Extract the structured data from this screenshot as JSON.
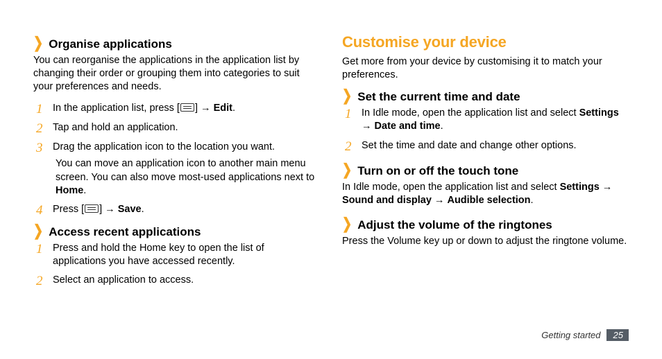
{
  "colors": {
    "accent": "#f5a623",
    "text": "#000000",
    "badge_bg": "#555d66"
  },
  "left": {
    "organise": {
      "heading": "Organise applications",
      "intro": "You can reorganise the applications in the application list by changing their order or grouping them into categories to suit your preferences and needs.",
      "steps": [
        {
          "num": "1",
          "html": "In the application list, press [<span class='menu-icon' data-name='menu-icon' data-interactable='false'></span>] → <span class='b'>Edit</span>."
        },
        {
          "num": "2",
          "html": "Tap and hold an application."
        },
        {
          "num": "3",
          "html": "Drag the application icon to the location you want."
        },
        {
          "sub": true,
          "html": "You can move an application icon to another main menu screen. You can also move most-used applications next to <span class='b'>Home</span>."
        },
        {
          "num": "4",
          "html": "Press [<span class='menu-icon' data-name='menu-icon' data-interactable='false'></span>] → <span class='b'>Save</span>."
        }
      ]
    },
    "recent": {
      "heading": "Access recent applications",
      "steps": [
        {
          "num": "1",
          "html": "Press and hold the Home key to open the list of applications you have accessed recently."
        },
        {
          "num": "2",
          "html": "Select an application to access."
        }
      ]
    }
  },
  "right": {
    "title": "Customise your device",
    "intro": "Get more from your device by customising it to match your preferences.",
    "time": {
      "heading": "Set the current time and date",
      "steps": [
        {
          "num": "1",
          "html": "In Idle mode, open the application list and select <span class='b'>Settings</span> → <span class='b'>Date and time</span>."
        },
        {
          "num": "2",
          "html": "Set the time and date and change other options."
        }
      ]
    },
    "tone": {
      "heading": "Turn on or off the touch tone",
      "body_html": "In Idle mode, open the application list and select <span class='b'>Settings</span> → <span class='b'>Sound and display</span> → <span class='b'>Audible selection</span>."
    },
    "volume": {
      "heading": "Adjust the volume of the ringtones",
      "body": "Press the Volume key up or down to adjust the ringtone volume."
    }
  },
  "footer": {
    "section": "Getting started",
    "page": "25"
  }
}
